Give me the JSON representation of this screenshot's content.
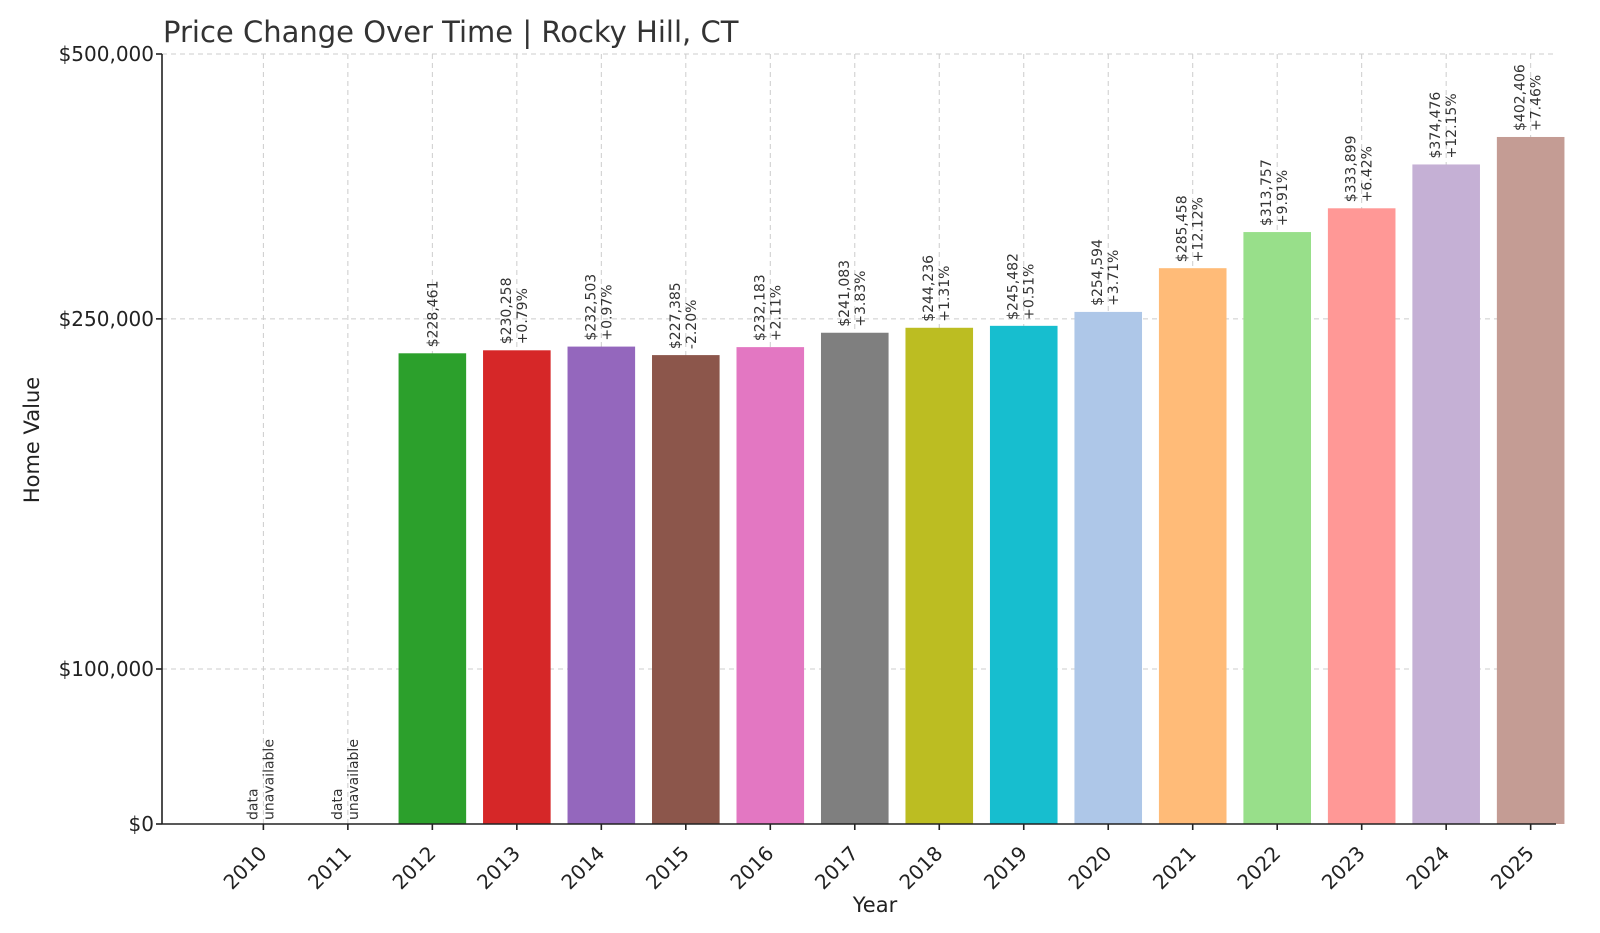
{
  "chart_data": {
    "type": "bar",
    "title": "Price Change Over Time | Rocky Hill, CT",
    "xlabel": "Year",
    "ylabel": "Home Value",
    "categories": [
      "2010",
      "2011",
      "2012",
      "2013",
      "2014",
      "2015",
      "2016",
      "2017",
      "2018",
      "2019",
      "2020",
      "2021",
      "2022",
      "2023",
      "2024",
      "2025"
    ],
    "values": [
      null,
      null,
      228461,
      230258,
      232503,
      227385,
      232183,
      241083,
      244236,
      245482,
      254594,
      285458,
      313757,
      333899,
      374476,
      402406
    ],
    "value_labels": [
      "",
      "",
      "$228,461",
      "$230,258",
      "$232,503",
      "$227,385",
      "$232,183",
      "$241,083",
      "$244,236",
      "$245,482",
      "$254,594",
      "$285,458",
      "$313,757",
      "$333,899",
      "$374,476",
      "$402,406"
    ],
    "change_labels": [
      "",
      "",
      "",
      "+0.79%",
      "+0.97%",
      "-2.20%",
      "+2.11%",
      "+3.83%",
      "+1.31%",
      "+0.51%",
      "+3.71%",
      "+12.12%",
      "+9.91%",
      "+6.42%",
      "+12.15%",
      "+7.46%"
    ],
    "missing_label": [
      "data",
      "unavailable"
    ],
    "colors": [
      "#1f77b4",
      "#ff7f0e",
      "#2ca02c",
      "#d62728",
      "#9467bd",
      "#8c564b",
      "#e377c2",
      "#7f7f7f",
      "#bcbd22",
      "#17becf",
      "#aec7e8",
      "#ffbb78",
      "#98df8a",
      "#ff9896",
      "#c5b0d5",
      "#c49c94"
    ],
    "yticks": [
      0,
      100000,
      250000,
      500000
    ],
    "ytick_labels": [
      "$0",
      "$100,000",
      "$250,000",
      "$500,000"
    ],
    "ylim": [
      0,
      500000
    ],
    "yscale": "symlog",
    "grid": true
  }
}
